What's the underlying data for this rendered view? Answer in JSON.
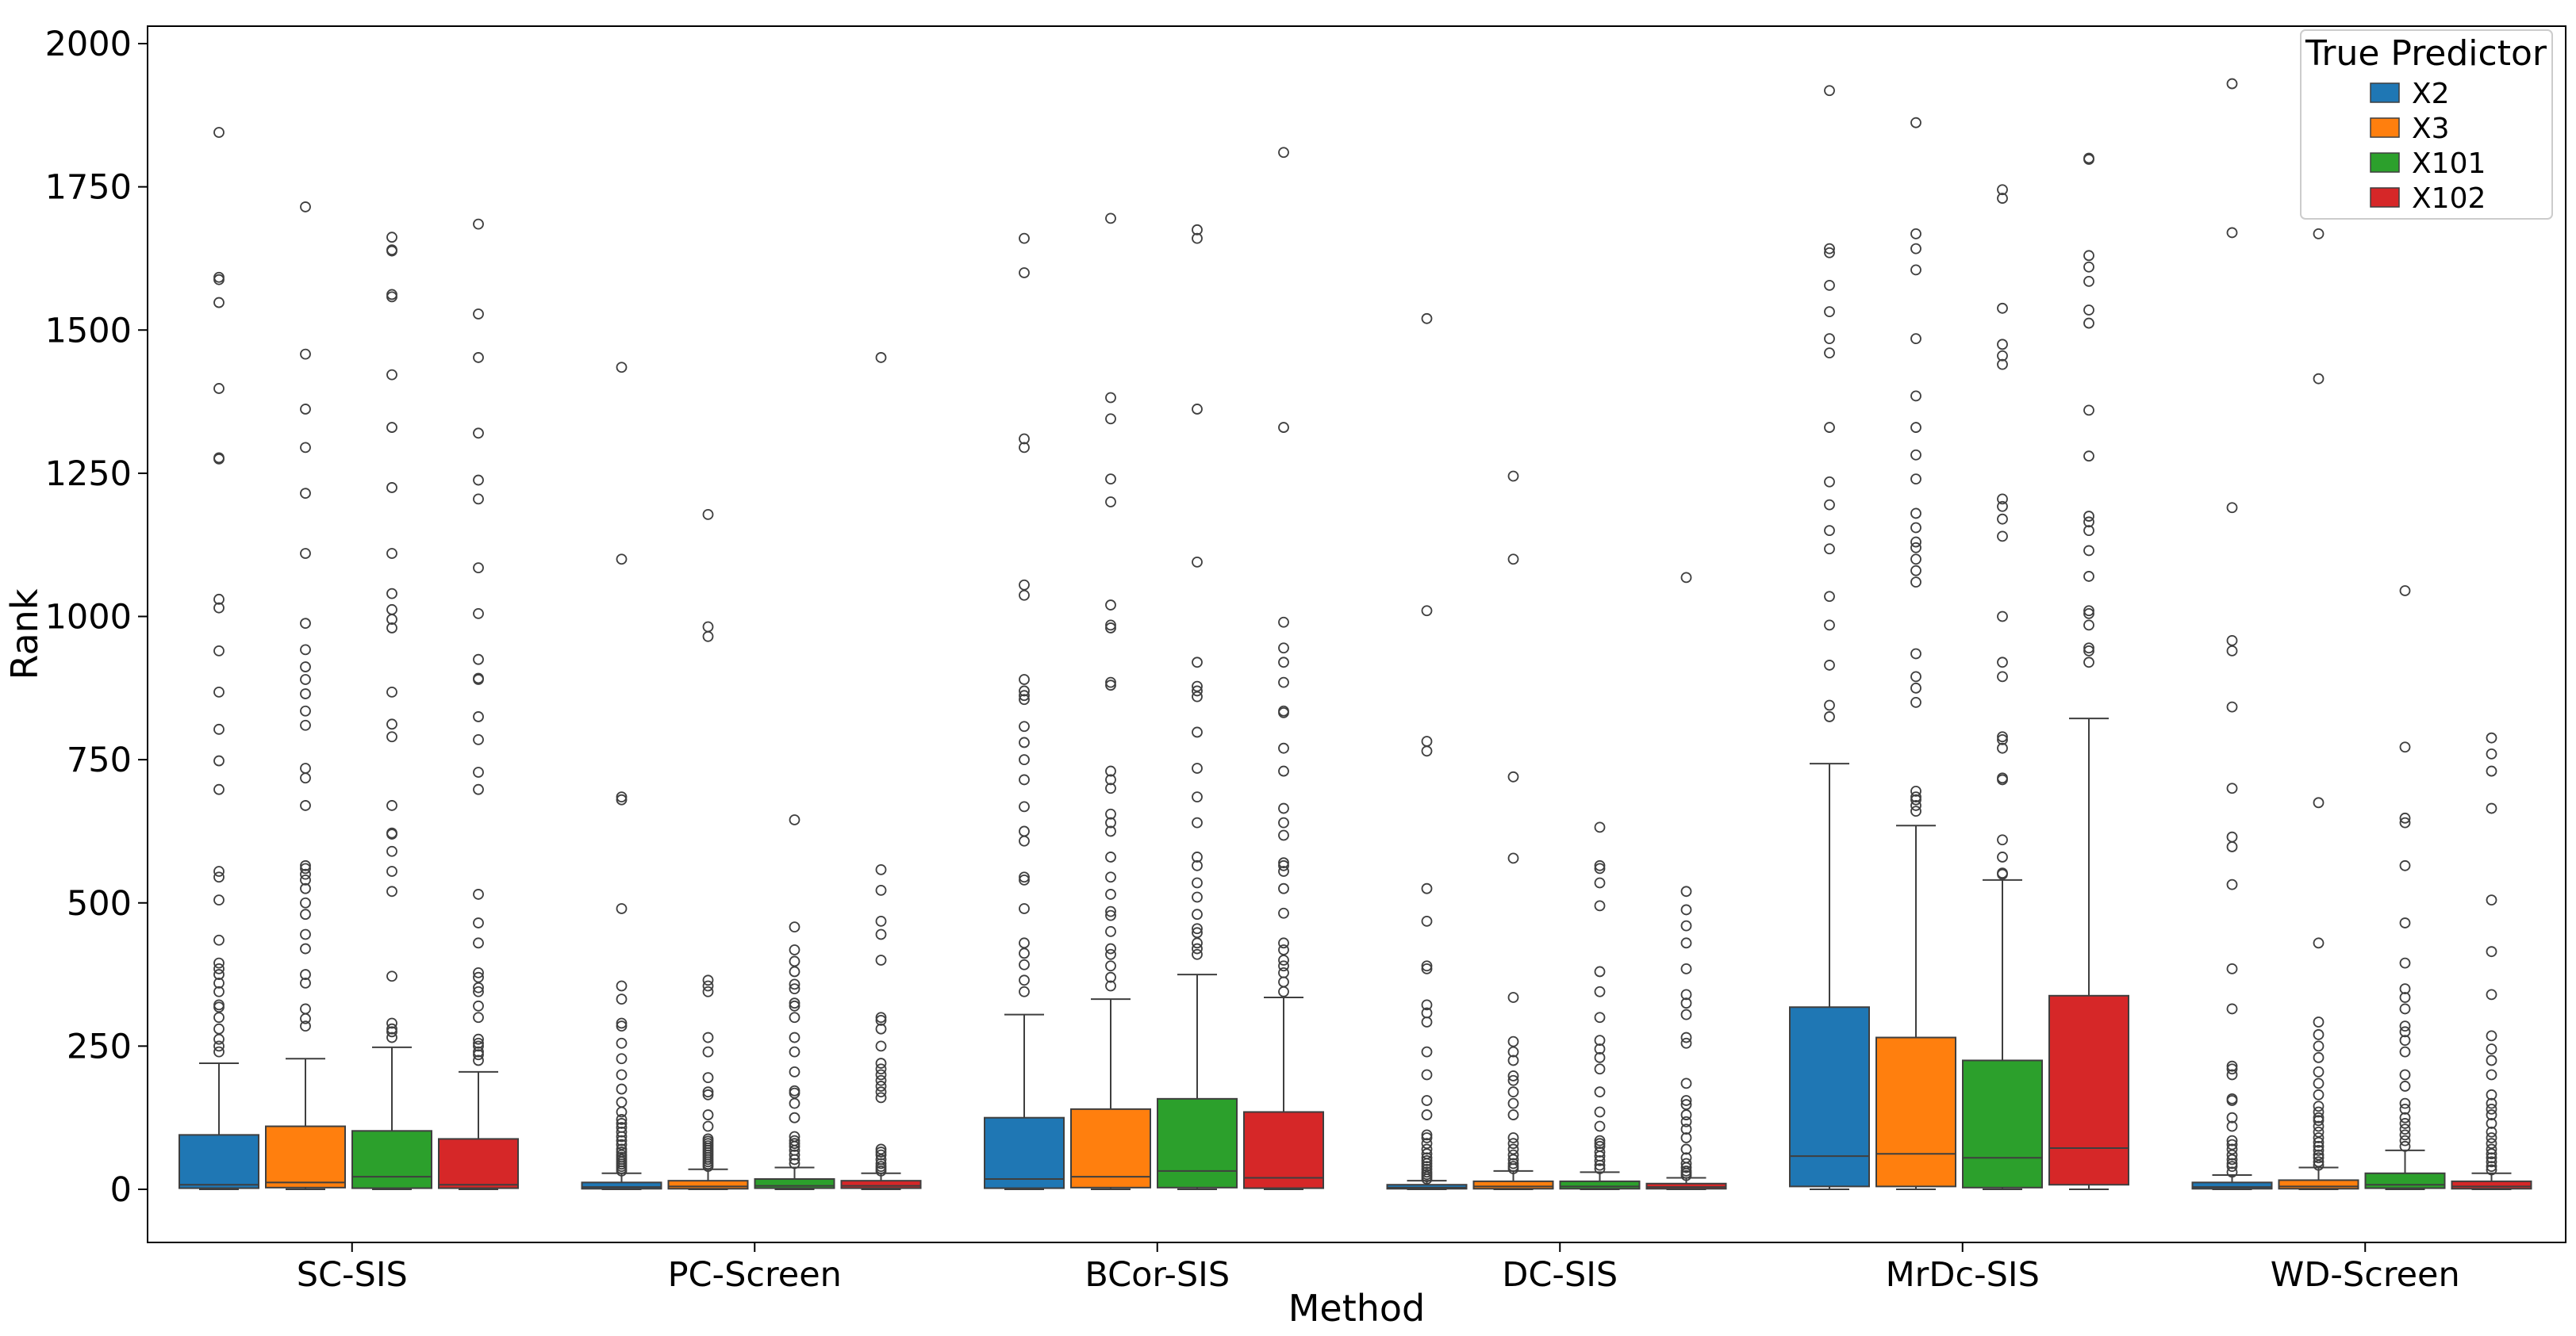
{
  "chart_data": {
    "type": "boxplot",
    "title": "",
    "xlabel": "Method",
    "ylabel": "Rank",
    "ylim": [
      -95,
      2030
    ],
    "yticks": [
      0,
      250,
      500,
      750,
      1000,
      1250,
      1500,
      1750,
      2000
    ],
    "grid": false,
    "legend": {
      "title": "True Predictor",
      "position": "top-right"
    },
    "categories": [
      "SC-SIS",
      "PC-Screen",
      "BCor-SIS",
      "DC-SIS",
      "MrDc-SIS",
      "WD-Screen"
    ],
    "series": [
      {
        "name": "X2",
        "color": "#1f77b4",
        "boxes": [
          {
            "min": 0,
            "q1": 2,
            "median": 8,
            "q3": 95,
            "max": 220,
            "outliers": [
              240,
              250,
              262,
              280,
              300,
              318,
              322,
              345,
              360,
              375,
              385,
              395,
              435,
              505,
              545,
              555,
              698,
              748,
              803,
              868,
              940,
              1015,
              1030,
              1275,
              1277,
              1398,
              1548,
              1588,
              1592,
              1845
            ]
          },
          {
            "min": 0,
            "q1": 1,
            "median": 4,
            "q3": 12,
            "max": 28,
            "outliers": [
              32,
              36,
              40,
              44,
              48,
              52,
              56,
              60,
              65,
              70,
              78,
              85,
              92,
              100,
              108,
              115,
              122,
              135,
              152,
              175,
              200,
              228,
              255,
              285,
              290,
              332,
              355,
              490,
              680,
              685,
              1100,
              1435
            ]
          },
          {
            "min": 0,
            "q1": 2,
            "median": 18,
            "q3": 125,
            "max": 305,
            "outliers": [
              345,
              365,
              392,
              412,
              430,
              490,
              540,
              545,
              608,
              625,
              668,
              715,
              750,
              780,
              808,
              855,
              862,
              870,
              890,
              1037,
              1055,
              1295,
              1310,
              1600,
              1660
            ]
          },
          {
            "min": 0,
            "q1": 1,
            "median": 3,
            "q3": 8,
            "max": 15,
            "outliers": [
              18,
              22,
              26,
              30,
              35,
              40,
              45,
              50,
              55,
              62,
              70,
              80,
              90,
              95,
              130,
              155,
              200,
              240,
              292,
              308,
              322,
              385,
              390,
              468,
              525,
              765,
              782,
              1010,
              1520
            ]
          },
          {
            "min": 0,
            "q1": 5,
            "median": 58,
            "q3": 318,
            "max": 743,
            "outliers": [
              825,
              845,
              915,
              985,
              1035,
              1118,
              1150,
              1195,
              1235,
              1330,
              1460,
              1485,
              1532,
              1578,
              1635,
              1642,
              1918
            ]
          },
          {
            "min": 0,
            "q1": 1,
            "median": 4,
            "q3": 12,
            "max": 25,
            "outliers": [
              30,
              40,
              45,
              52,
              60,
              70,
              78,
              85,
              110,
              125,
              155,
              158,
              200,
              210,
              215,
              315,
              385,
              532,
              598,
              615,
              700,
              842,
              940,
              958,
              1190,
              1670,
              1930
            ]
          }
        ]
      },
      {
        "name": "X3",
        "color": "#ff7f0e",
        "boxes": [
          {
            "min": 0,
            "q1": 3,
            "median": 12,
            "q3": 110,
            "max": 228,
            "outliers": [
              285,
              298,
              315,
              360,
              375,
              420,
              445,
              480,
              500,
              525,
              540,
              550,
              560,
              565,
              670,
              718,
              735,
              810,
              835,
              865,
              890,
              912,
              942,
              988,
              1110,
              1215,
              1295,
              1362,
              1458,
              1715
            ]
          },
          {
            "min": 0,
            "q1": 1,
            "median": 5,
            "q3": 15,
            "max": 35,
            "outliers": [
              40,
              44,
              48,
              52,
              56,
              60,
              64,
              68,
              72,
              76,
              80,
              84,
              88,
              110,
              130,
              165,
              170,
              195,
              240,
              265,
              345,
              355,
              365,
              965,
              982,
              1178
            ]
          },
          {
            "min": 0,
            "q1": 3,
            "median": 22,
            "q3": 140,
            "max": 332,
            "outliers": [
              355,
              370,
              390,
              410,
              420,
              450,
              478,
              485,
              515,
              545,
              580,
              625,
              640,
              655,
              700,
              715,
              730,
              880,
              885,
              980,
              985,
              1020,
              1200,
              1240,
              1345,
              1382,
              1695
            ]
          },
          {
            "min": 0,
            "q1": 1,
            "median": 5,
            "q3": 14,
            "max": 32,
            "outliers": [
              36,
              40,
              45,
              52,
              60,
              70,
              80,
              90,
              130,
              150,
              170,
              190,
              198,
              225,
              240,
              258,
              335,
              578,
              720,
              1100,
              1245
            ]
          },
          {
            "min": 0,
            "q1": 5,
            "median": 62,
            "q3": 265,
            "max": 635,
            "outliers": [
              660,
              670,
              680,
              685,
              695,
              850,
              875,
              895,
              935,
              1060,
              1080,
              1100,
              1120,
              1130,
              1155,
              1180,
              1240,
              1282,
              1330,
              1385,
              1485,
              1605,
              1642,
              1668,
              1862
            ]
          },
          {
            "min": 0,
            "q1": 1,
            "median": 5,
            "q3": 16,
            "max": 38,
            "outliers": [
              42,
              48,
              55,
              60,
              68,
              75,
              82,
              90,
              100,
              110,
              120,
              125,
              135,
              145,
              165,
              185,
              205,
              230,
              250,
              270,
              292,
              430,
              675,
              1415,
              1668
            ]
          }
        ]
      },
      {
        "name": "X101",
        "color": "#2ca02c",
        "boxes": [
          {
            "min": 0,
            "q1": 2,
            "median": 22,
            "q3": 102,
            "max": 248,
            "outliers": [
              265,
              275,
              280,
              290,
              372,
              520,
              555,
              590,
              620,
              622,
              670,
              790,
              812,
              868,
              980,
              995,
              1012,
              1040,
              1110,
              1225,
              1330,
              1422,
              1558,
              1562,
              1638,
              1640,
              1662
            ]
          },
          {
            "min": 0,
            "q1": 2,
            "median": 6,
            "q3": 18,
            "max": 38,
            "outliers": [
              45,
              52,
              60,
              68,
              75,
              80,
              85,
              92,
              125,
              150,
              168,
              172,
              205,
              240,
              265,
              300,
              320,
              325,
              350,
              358,
              380,
              398,
              418,
              458,
              645
            ]
          },
          {
            "min": 0,
            "q1": 3,
            "median": 32,
            "q3": 158,
            "max": 375,
            "outliers": [
              410,
              420,
              430,
              448,
              455,
              480,
              510,
              535,
              565,
              580,
              640,
              685,
              735,
              798,
              860,
              870,
              878,
              920,
              1095,
              1362,
              1660,
              1675
            ]
          },
          {
            "min": 0,
            "q1": 1,
            "median": 5,
            "q3": 14,
            "max": 30,
            "outliers": [
              36,
              42,
              50,
              58,
              65,
              75,
              80,
              85,
              110,
              135,
              170,
              210,
              230,
              245,
              260,
              300,
              345,
              380,
              495,
              535,
              560,
              565,
              632
            ]
          },
          {
            "min": 0,
            "q1": 3,
            "median": 55,
            "q3": 225,
            "max": 540,
            "outliers": [
              550,
              552,
              580,
              610,
              715,
              718,
              770,
              785,
              790,
              895,
              920,
              1000,
              1140,
              1170,
              1192,
              1205,
              1440,
              1455,
              1475,
              1538,
              1730,
              1745
            ]
          },
          {
            "min": 0,
            "q1": 2,
            "median": 8,
            "q3": 28,
            "max": 68,
            "outliers": [
              75,
              85,
              95,
              105,
              115,
              125,
              140,
              150,
              180,
              200,
              240,
              260,
              275,
              285,
              315,
              335,
              350,
              395,
              465,
              565,
              640,
              648,
              772,
              1045
            ]
          }
        ]
      },
      {
        "name": "X102",
        "color": "#d62728",
        "boxes": [
          {
            "min": 0,
            "q1": 2,
            "median": 8,
            "q3": 88,
            "max": 205,
            "outliers": [
              225,
              235,
              240,
              250,
              255,
              262,
              300,
              320,
              345,
              352,
              370,
              378,
              430,
              465,
              515,
              698,
              728,
              785,
              825,
              890,
              892,
              925,
              1005,
              1085,
              1205,
              1238,
              1320,
              1452,
              1528,
              1685
            ]
          },
          {
            "min": 0,
            "q1": 2,
            "median": 6,
            "q3": 15,
            "max": 28,
            "outliers": [
              32,
              36,
              40,
              45,
              52,
              60,
              65,
              70,
              160,
              170,
              180,
              190,
              200,
              210,
              220,
              250,
              280,
              295,
              300,
              400,
              445,
              468,
              522,
              558,
              1452
            ]
          },
          {
            "min": 0,
            "q1": 2,
            "median": 20,
            "q3": 135,
            "max": 335,
            "outliers": [
              345,
              362,
              378,
              390,
              400,
              418,
              430,
              482,
              525,
              555,
              565,
              570,
              618,
              640,
              665,
              730,
              770,
              832,
              835,
              885,
              920,
              945,
              990,
              1330,
              1810
            ]
          },
          {
            "min": 0,
            "q1": 1,
            "median": 4,
            "q3": 10,
            "max": 20,
            "outliers": [
              24,
              28,
              32,
              38,
              45,
              55,
              70,
              90,
              105,
              118,
              130,
              148,
              155,
              185,
              255,
              265,
              305,
              325,
              340,
              385,
              430,
              460,
              488,
              520,
              1068
            ]
          },
          {
            "min": 0,
            "q1": 8,
            "median": 72,
            "q3": 338,
            "max": 822,
            "outliers": [
              920,
              940,
              945,
              985,
              1005,
              1010,
              1070,
              1115,
              1150,
              1165,
              1175,
              1280,
              1360,
              1512,
              1535,
              1585,
              1610,
              1630,
              1798,
              1800
            ]
          },
          {
            "min": 0,
            "q1": 1,
            "median": 5,
            "q3": 14,
            "max": 28,
            "outliers": [
              34,
              40,
              48,
              55,
              62,
              70,
              80,
              90,
              100,
              115,
              130,
              140,
              150,
              165,
              200,
              225,
              245,
              268,
              340,
              415,
              505,
              665,
              730,
              760,
              788
            ]
          }
        ]
      }
    ]
  }
}
